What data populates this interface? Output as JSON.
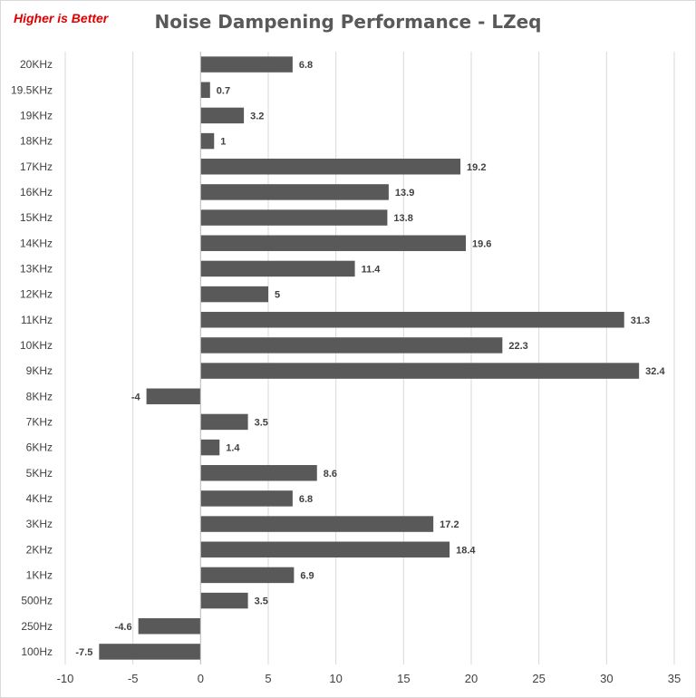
{
  "chart_data": {
    "type": "bar",
    "orientation": "horizontal",
    "title": "Noise Dampening Performance - LZeq",
    "annotation": "Higher is Better",
    "categories": [
      "20KHz",
      "19.5KHz",
      "19KHz",
      "18KHz",
      "17KHz",
      "16KHz",
      "15KHz",
      "14KHz",
      "13KHz",
      "12KHz",
      "11KHz",
      "10KHz",
      "9KHz",
      "8KHz",
      "7KHz",
      "6KHz",
      "5KHz",
      "4KHz",
      "3KHz",
      "2KHz",
      "1KHz",
      "500Hz",
      "250Hz",
      "100Hz"
    ],
    "values": [
      6.8,
      0.7,
      3.2,
      1,
      19.2,
      13.9,
      13.8,
      19.6,
      11.4,
      5,
      31.3,
      22.3,
      32.4,
      -4,
      3.5,
      1.4,
      8.6,
      6.8,
      17.2,
      18.4,
      6.9,
      3.5,
      -4.6,
      -7.5
    ],
    "xlim": [
      -10,
      35
    ],
    "xticks": [
      -10,
      -5,
      0,
      5,
      10,
      15,
      20,
      25,
      30,
      35
    ],
    "grid": true,
    "legend": "none",
    "bar_color": "#595959",
    "grid_color": "#d9d9d9",
    "annotation_color": "#e00000"
  }
}
